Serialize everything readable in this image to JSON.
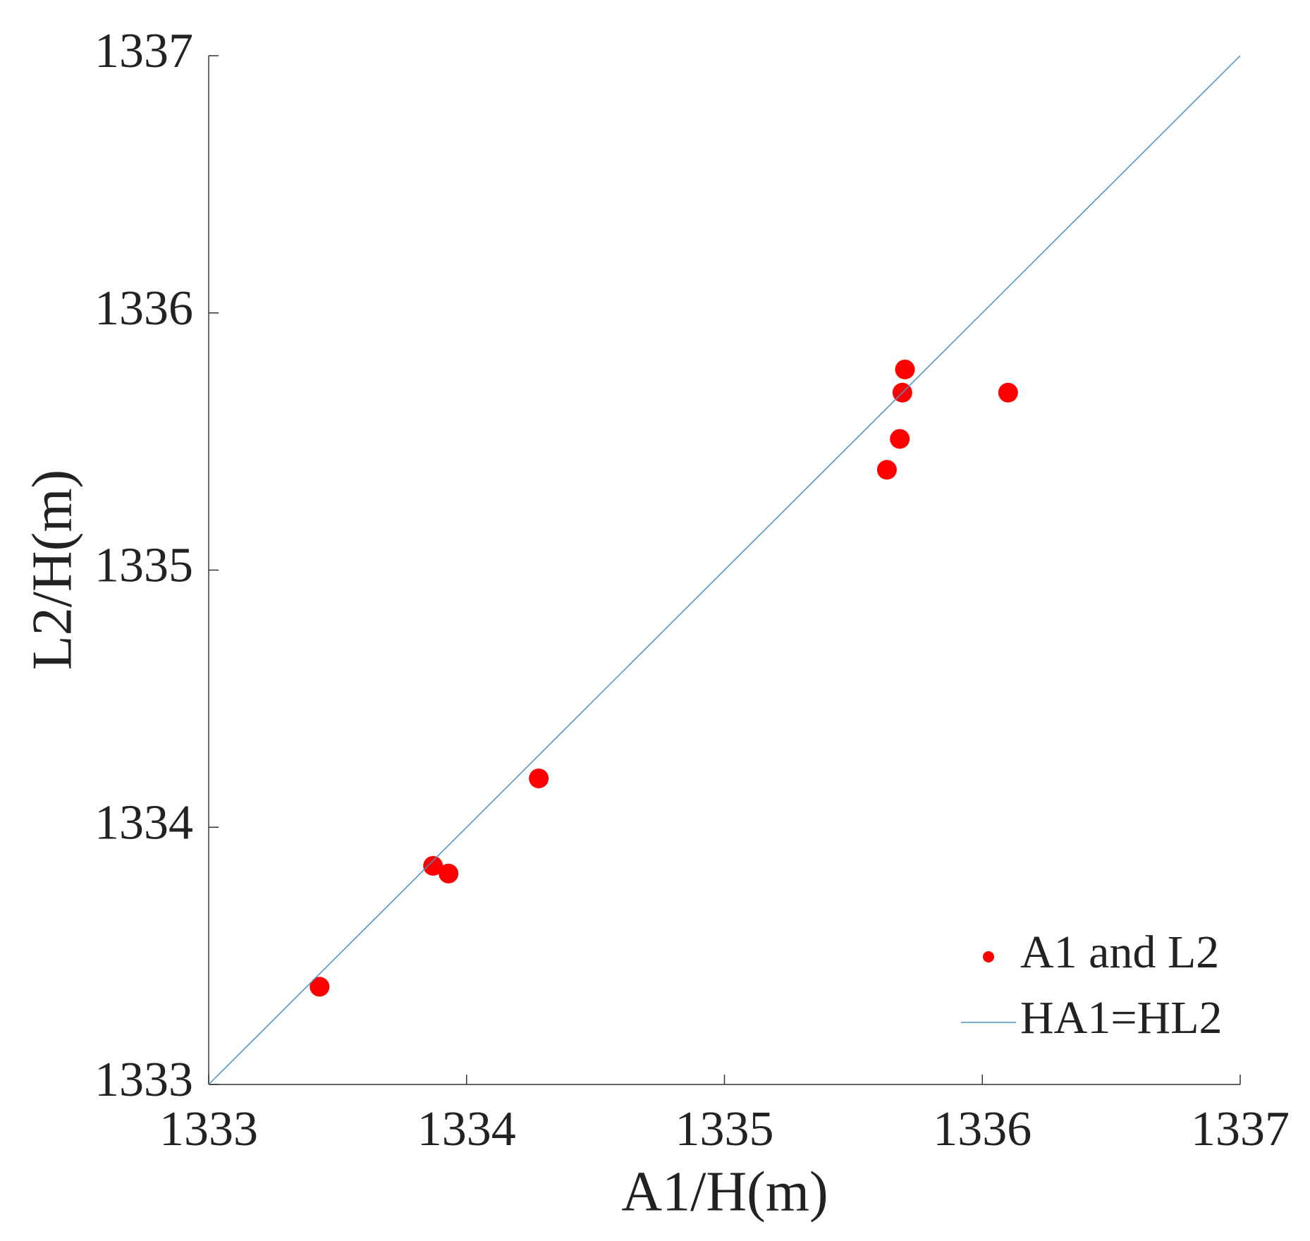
{
  "chart_data": {
    "type": "scatter",
    "x_label": "A1/H(m)",
    "y_label": "L2/H(m)",
    "xlim": [
      1333,
      1337
    ],
    "ylim": [
      1333,
      1337
    ],
    "xticks": [
      1333,
      1334,
      1335,
      1336,
      1337
    ],
    "yticks": [
      1333,
      1334,
      1335,
      1336,
      1337
    ],
    "legend": "lower right",
    "series": [
      {
        "name": "A1 and L2",
        "color": "#ff0000",
        "kind": "scatter",
        "x": [
          1333.43,
          1333.87,
          1333.93,
          1334.28,
          1335.63,
          1335.68,
          1335.69,
          1335.7,
          1336.1
        ],
        "values": [
          1333.38,
          1333.85,
          1333.82,
          1334.19,
          1335.39,
          1335.51,
          1335.69,
          1335.78,
          1335.69
        ]
      },
      {
        "name": "HA1=HL2",
        "color": "#4a90c8",
        "kind": "line",
        "x": [
          1333,
          1337
        ],
        "values": [
          1333,
          1337
        ]
      }
    ]
  }
}
